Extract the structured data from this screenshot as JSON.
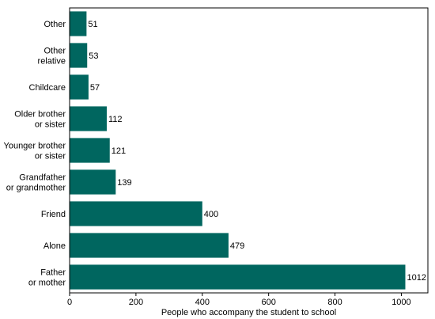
{
  "chart_data": {
    "type": "bar",
    "orientation": "horizontal",
    "categories": [
      [
        "Other"
      ],
      [
        "Other",
        "relative"
      ],
      [
        "Childcare"
      ],
      [
        "Older brother",
        "or sister"
      ],
      [
        "Younger brother",
        "or sister"
      ],
      [
        "Grandfather",
        "or grandmother"
      ],
      [
        "Friend"
      ],
      [
        "Alone"
      ],
      [
        "Father",
        "or mother"
      ]
    ],
    "values": [
      51,
      53,
      57,
      112,
      121,
      139,
      400,
      479,
      1012
    ],
    "value_labels": [
      "51",
      "53",
      "57",
      "112",
      "121",
      "139",
      "400",
      "479",
      "1012"
    ],
    "xlabel": "People who accompany the student to school",
    "ylabel": "",
    "title": "",
    "xlim": [
      0,
      1080
    ],
    "xticks": [
      0,
      200,
      400,
      600,
      800,
      1000
    ],
    "bar_color": "#00665f",
    "grid": false,
    "legend": false
  }
}
